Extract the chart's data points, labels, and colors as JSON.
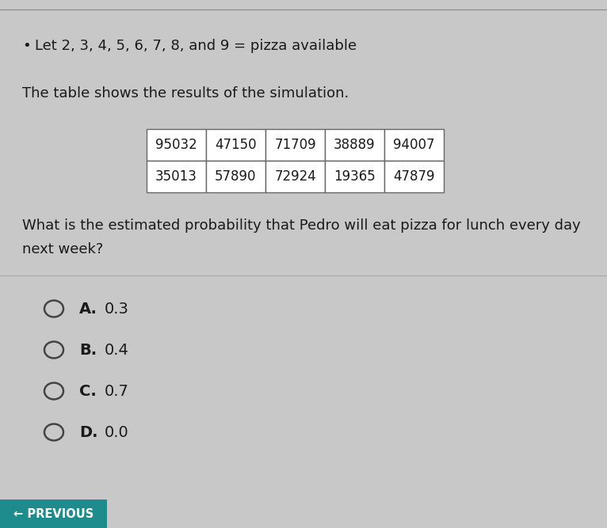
{
  "bullet_text": "Let 2, 3, 4, 5, 6, 7, 8, and 9 = pizza available",
  "table_intro": "The table shows the results of the simulation.",
  "table_data": [
    [
      "95032",
      "47150",
      "71709",
      "38889",
      "94007"
    ],
    [
      "35013",
      "57890",
      "72924",
      "19365",
      "47879"
    ]
  ],
  "question_line1": "What is the estimated probability that Pedro will eat pizza for lunch every day",
  "question_line2": "next week?",
  "choices": [
    {
      "label": "A.",
      "value": "0.3"
    },
    {
      "label": "B.",
      "value": "0.4"
    },
    {
      "label": "C.",
      "value": "0.7"
    },
    {
      "label": "D.",
      "value": "0.0"
    }
  ],
  "previous_button_text": "← PREVIOUS",
  "previous_button_color": "#1e8c8c",
  "bg_color": "#c8c8c8",
  "text_color": "#1a1a1a",
  "table_bg": "#ffffff",
  "table_border_color": "#666666",
  "separator_color": "#aaaaaa",
  "top_line_color": "#888888",
  "figsize": [
    7.66,
    6.67
  ],
  "dpi": 100
}
